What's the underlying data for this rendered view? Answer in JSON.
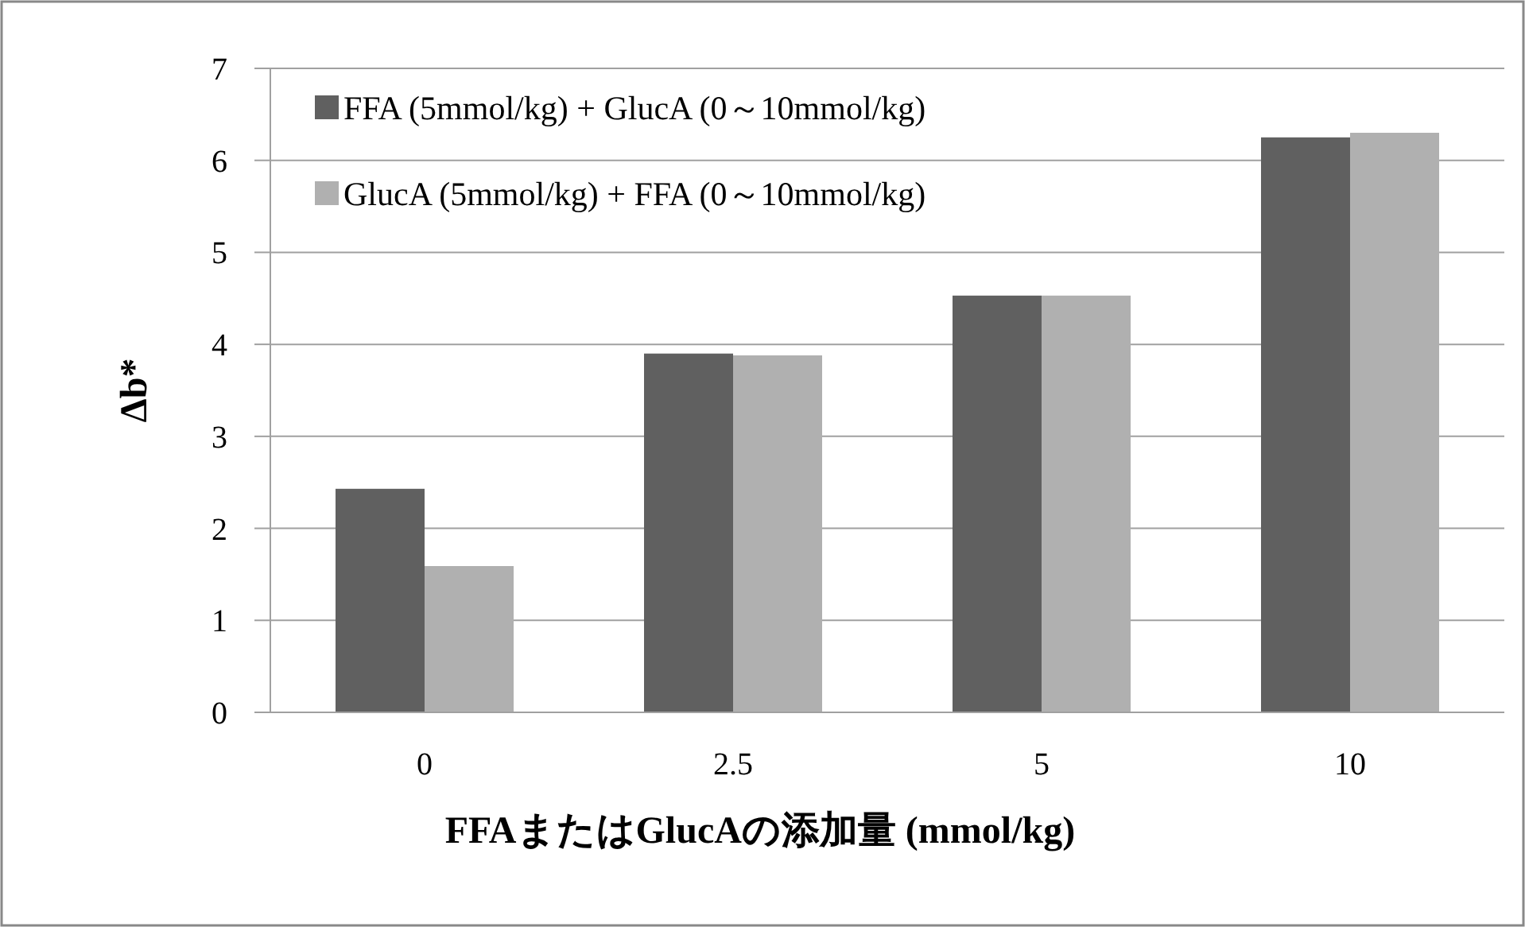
{
  "chart_data": {
    "type": "bar",
    "xlabel": "FFAまたはGlucAの添加量 (mmol/kg)",
    "ylabel": "Δb*",
    "categories": [
      "0",
      "2.5",
      "5",
      "10"
    ],
    "series": [
      {
        "name": "FFA (5mmol/kg) + GlucA (0～10mmol/kg)",
        "color": "#606060",
        "values": [
          2.43,
          3.9,
          4.53,
          6.25
        ]
      },
      {
        "name": "GlucA (5mmol/kg) + FFA (0～10mmol/kg)",
        "color": "#b0b0b0",
        "values": [
          1.59,
          3.88,
          4.53,
          6.3
        ]
      }
    ],
    "ylim": [
      0,
      7
    ],
    "yticks": [
      0,
      1,
      2,
      3,
      4,
      5,
      6,
      7
    ],
    "grid": "y",
    "legend": "top left"
  }
}
